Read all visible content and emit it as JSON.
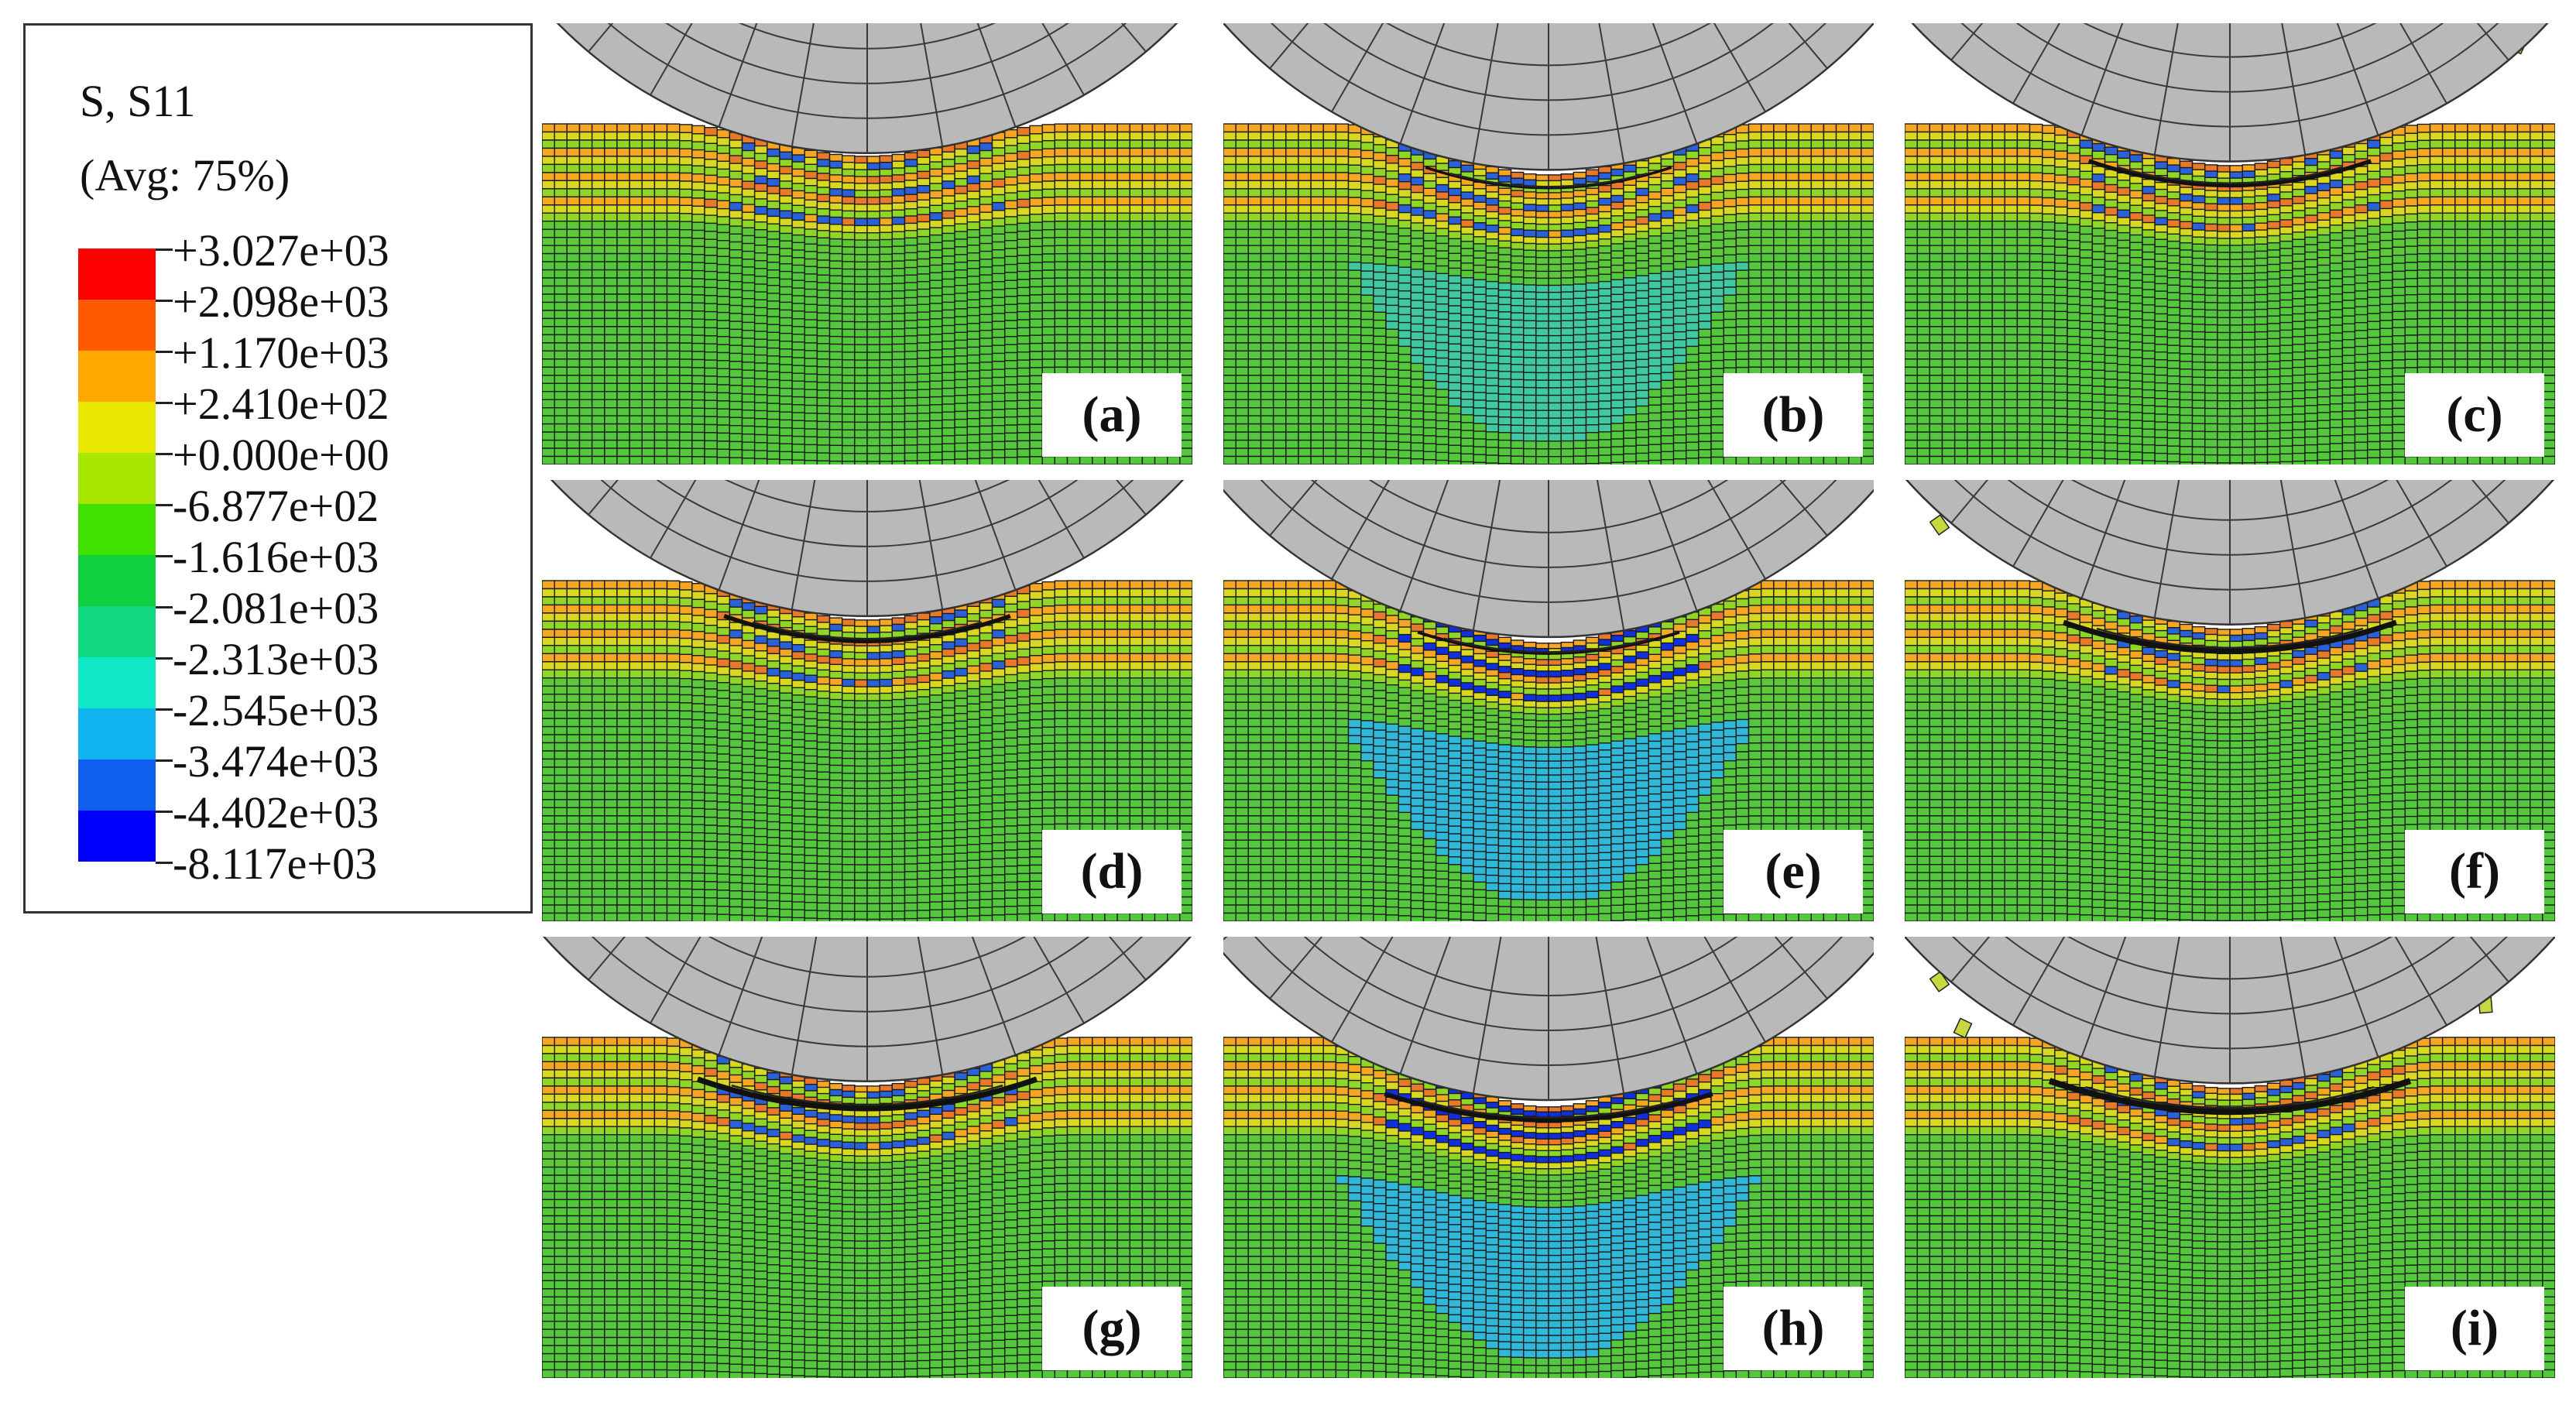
{
  "legend": {
    "title": "S, S11",
    "subtitle": "(Avg: 75%)",
    "colors": [
      "#ff0000",
      "#ff5a00",
      "#ffa800",
      "#e8e800",
      "#a8e800",
      "#40e000",
      "#10d040",
      "#10d880",
      "#10e8c8",
      "#10b4f0",
      "#1060f0",
      "#0000ff"
    ],
    "ticks": [
      "+3.027e+03",
      "+2.098e+03",
      "+1.170e+03",
      "+2.410e+02",
      "+0.000e+00",
      "-6.877e+02",
      "-1.616e+03",
      "-2.081e+03",
      "-2.313e+03",
      "-2.545e+03",
      "-3.474e+03",
      "-4.402e+03",
      "-8.117e+03"
    ]
  },
  "panels": [
    {
      "label": "(a)",
      "depth": 0.2,
      "compression": 0.3,
      "damage": 0.0,
      "debris": 0
    },
    {
      "label": "(b)",
      "depth": 0.6,
      "compression": 0.55,
      "damage": 0.1,
      "debris": 0
    },
    {
      "label": "(c)",
      "depth": 0.4,
      "compression": 0.15,
      "damage": 0.45,
      "debris": 1
    },
    {
      "label": "(d)",
      "depth": 0.35,
      "compression": 0.25,
      "damage": 0.5,
      "debris": 0
    },
    {
      "label": "(e)",
      "depth": 0.85,
      "compression": 0.9,
      "damage": 0.15,
      "debris": 0
    },
    {
      "label": "(f)",
      "depth": 0.55,
      "compression": 0.2,
      "damage": 0.8,
      "debris": 2
    },
    {
      "label": "(g)",
      "depth": 0.55,
      "compression": 0.25,
      "damage": 0.85,
      "debris": 0
    },
    {
      "label": "(h)",
      "depth": 1.0,
      "compression": 1.0,
      "damage": 0.6,
      "debris": 0
    },
    {
      "label": "(i)",
      "depth": 0.6,
      "compression": 0.2,
      "damage": 1.0,
      "debris": 4
    }
  ]
}
